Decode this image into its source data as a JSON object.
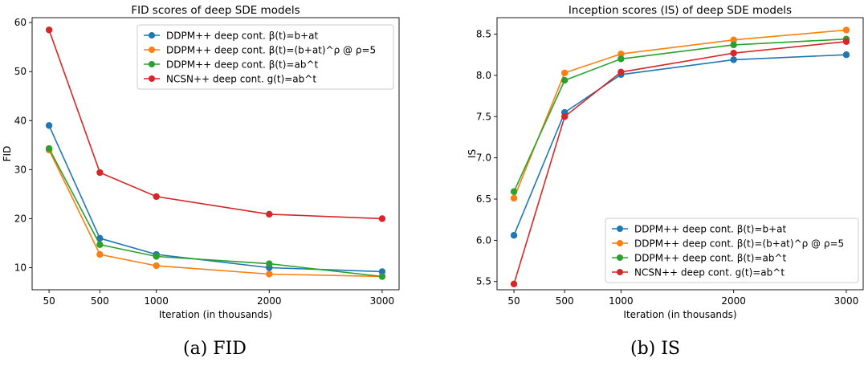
{
  "chart_data": [
    {
      "type": "line",
      "title": "FID scores of deep SDE models",
      "xlabel": "Iteration (in thousands)",
      "ylabel": "FID",
      "x": [
        50,
        500,
        1000,
        2000,
        3000
      ],
      "xlim": [
        -100,
        3150
      ],
      "ylim": [
        5.5,
        61
      ],
      "yticks": [
        10,
        20,
        30,
        40,
        50,
        60
      ],
      "grid": false,
      "legend_position": "top-right",
      "series": [
        {
          "name": "DDPM++ deep cont. β(t)=b+at",
          "color": "#1f77b4",
          "values": [
            39.0,
            16.0,
            12.7,
            10.0,
            9.2
          ]
        },
        {
          "name": "DDPM++ deep cont. β(t)=(b+at)^ρ @ ρ=5",
          "color": "#ff7f0e",
          "values": [
            34.0,
            12.7,
            10.4,
            8.7,
            8.2
          ]
        },
        {
          "name": "DDPM++ deep cont. β(t)=ab^t",
          "color": "#2ca02c",
          "values": [
            34.3,
            14.7,
            12.3,
            10.8,
            8.2
          ]
        },
        {
          "name": "NCSN++ deep cont. g(t)=ab^t",
          "color": "#d62728",
          "values": [
            58.5,
            29.4,
            24.5,
            20.9,
            20.0
          ]
        }
      ]
    },
    {
      "type": "line",
      "title": "Inception scores (IS) of deep SDE models",
      "xlabel": "Iteration (in thousands)",
      "ylabel": "IS",
      "x": [
        50,
        500,
        1000,
        2000,
        3000
      ],
      "xlim": [
        -100,
        3150
      ],
      "ylim": [
        5.4,
        8.7
      ],
      "yticks": [
        5.5,
        6.0,
        6.5,
        7.0,
        7.5,
        8.0,
        8.5
      ],
      "grid": false,
      "legend_position": "bottom-right",
      "series": [
        {
          "name": "DDPM++ deep cont. β(t)=b+at",
          "color": "#1f77b4",
          "values": [
            6.06,
            7.55,
            8.01,
            8.19,
            8.25
          ]
        },
        {
          "name": "DDPM++ deep cont. β(t)=(b+at)^ρ @ ρ=5",
          "color": "#ff7f0e",
          "values": [
            6.51,
            8.03,
            8.26,
            8.43,
            8.55
          ]
        },
        {
          "name": "DDPM++ deep cont. β(t)=ab^t",
          "color": "#2ca02c",
          "values": [
            6.59,
            7.94,
            8.2,
            8.37,
            8.44
          ]
        },
        {
          "name": "NCSN++ deep cont. g(t)=ab^t",
          "color": "#d62728",
          "values": [
            5.47,
            7.5,
            8.04,
            8.27,
            8.41
          ]
        }
      ]
    }
  ],
  "captions": [
    "(a) FID",
    "(b) IS"
  ]
}
